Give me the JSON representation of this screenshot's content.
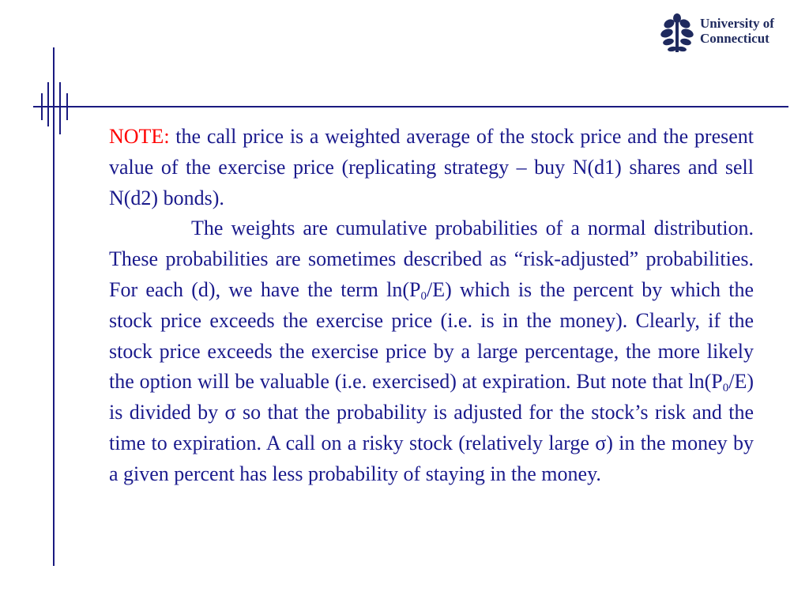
{
  "logo": {
    "line1": "University of",
    "line2": "Connecticut"
  },
  "note": {
    "label": "NOTE:",
    "text": " the call price is a weighted average of the stock price and the present value of the exercise price (replicating strategy – buy N(d1) shares and sell N(d2) bonds)."
  },
  "body": {
    "part1": "The weights are cumulative probabilities of a normal distribution. These probabilities are sometimes described as “risk-adjusted” probabilities. For each (d), we have the term ln(P",
    "sub1": "0",
    "part2": "/E) which is the percent by which the stock price exceeds the exercise price (i.e. is in the money). Clearly, if the stock price exceeds the exercise price by a large percentage, the more likely the option will be valuable (i.e. exercised) at expiration. But note that ln(P",
    "sub2": "0",
    "part3": "/E) is divided by σ so that the probability is adjusted for the stock’s risk  and the time to expiration. A call on a risky stock (relatively large σ) in the money by a given percent has less probability of staying in the money."
  },
  "colors": {
    "text": "#1a1a8c",
    "note_label": "#ff0000",
    "decoration": "#1a1a80"
  }
}
